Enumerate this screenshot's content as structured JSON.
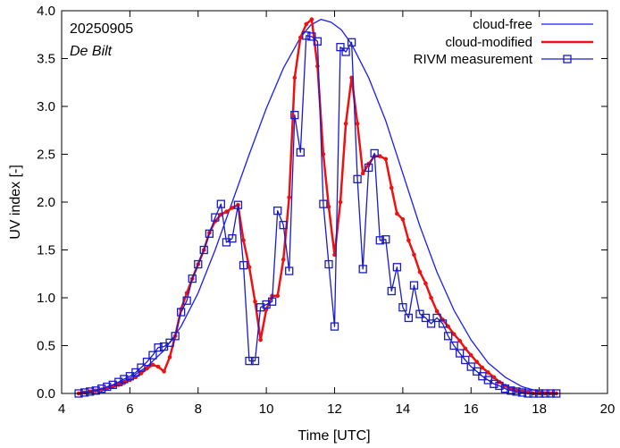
{
  "chart_data": {
    "type": "line",
    "xlabel": "Time  [UTC]",
    "ylabel": "UV index  [-]",
    "xlim": [
      4,
      20
    ],
    "ylim": [
      0,
      4
    ],
    "xticks": [
      4,
      6,
      8,
      10,
      12,
      14,
      16,
      18,
      20
    ],
    "yticks": [
      0.0,
      0.5,
      1.0,
      1.5,
      2.0,
      2.5,
      3.0,
      3.5,
      4.0
    ],
    "xtick_labels": [
      "4",
      "6",
      "8",
      "10",
      "12",
      "14",
      "16",
      "18",
      "20"
    ],
    "ytick_labels": [
      "0.0",
      "0.5",
      "1.0",
      "1.5",
      "2.0",
      "2.5",
      "3.0",
      "3.5",
      "4.0"
    ],
    "annotations": {
      "date": "20250905",
      "location": "De Bilt"
    },
    "legend": {
      "position": "top-right"
    },
    "colors": {
      "cloud_free": "#1a1aff",
      "cloud_modified": "#ee1111",
      "measurement": "#1a1acc"
    },
    "series": [
      {
        "name": "cloud-free",
        "style": "line",
        "x": [
          4.5,
          5.0,
          5.5,
          6.0,
          6.5,
          7.0,
          7.5,
          8.0,
          8.5,
          9.0,
          9.5,
          10.0,
          10.5,
          11.0,
          11.3,
          11.6,
          11.9,
          12.2,
          12.5,
          13.0,
          13.5,
          14.0,
          14.5,
          15.0,
          15.5,
          16.0,
          16.5,
          17.0,
          17.5,
          18.0,
          18.5
        ],
        "values": [
          0.01,
          0.03,
          0.08,
          0.16,
          0.28,
          0.45,
          0.7,
          1.05,
          1.5,
          2.0,
          2.5,
          2.98,
          3.4,
          3.72,
          3.85,
          3.91,
          3.88,
          3.8,
          3.65,
          3.3,
          2.85,
          2.3,
          1.75,
          1.27,
          0.87,
          0.56,
          0.32,
          0.17,
          0.07,
          0.02,
          0.005
        ]
      },
      {
        "name": "cloud-modified",
        "style": "line-dots",
        "x": [
          4.5,
          4.67,
          4.83,
          5.0,
          5.17,
          5.33,
          5.5,
          5.67,
          5.83,
          6.0,
          6.17,
          6.33,
          6.5,
          6.67,
          6.83,
          7.0,
          7.17,
          7.33,
          7.5,
          7.67,
          7.83,
          8.0,
          8.17,
          8.33,
          8.5,
          8.67,
          8.83,
          9.0,
          9.17,
          9.33,
          9.5,
          9.67,
          9.83,
          10.0,
          10.17,
          10.33,
          10.5,
          10.67,
          10.83,
          11.0,
          11.17,
          11.33,
          11.5,
          11.67,
          11.83,
          12.0,
          12.17,
          12.33,
          12.5,
          12.67,
          12.83,
          13.0,
          13.17,
          13.33,
          13.5,
          13.67,
          13.83,
          14.0,
          14.17,
          14.33,
          14.5,
          14.67,
          14.83,
          15.0,
          15.17,
          15.33,
          15.5,
          15.67,
          15.83,
          16.0,
          16.17,
          16.33,
          16.5,
          16.67,
          16.83,
          17.0,
          17.17,
          17.33,
          17.5,
          17.67,
          17.83,
          18.0,
          18.17,
          18.33,
          18.5
        ],
        "values": [
          0.0,
          0.01,
          0.02,
          0.03,
          0.04,
          0.05,
          0.07,
          0.09,
          0.11,
          0.14,
          0.17,
          0.21,
          0.26,
          0.3,
          0.28,
          0.23,
          0.38,
          0.6,
          0.88,
          1.05,
          1.2,
          1.35,
          1.5,
          1.68,
          1.8,
          1.87,
          1.9,
          1.94,
          1.97,
          1.6,
          1.32,
          0.96,
          0.56,
          0.88,
          1.02,
          1.02,
          1.4,
          2.05,
          3.3,
          3.72,
          3.86,
          3.91,
          3.42,
          2.5,
          1.95,
          1.45,
          2.0,
          2.82,
          3.3,
          2.82,
          2.3,
          2.4,
          2.48,
          2.48,
          2.45,
          2.15,
          1.88,
          1.82,
          1.6,
          1.45,
          1.27,
          1.15,
          1.0,
          0.86,
          0.77,
          0.7,
          0.62,
          0.55,
          0.47,
          0.4,
          0.33,
          0.27,
          0.22,
          0.17,
          0.12,
          0.08,
          0.05,
          0.03,
          0.02,
          0.01,
          0.0,
          0.0,
          0.0,
          0.0,
          0.0
        ]
      },
      {
        "name": "RIVM measurement",
        "style": "line-squares",
        "x": [
          4.5,
          4.67,
          4.83,
          5.0,
          5.17,
          5.33,
          5.5,
          5.67,
          5.83,
          6.0,
          6.17,
          6.33,
          6.5,
          6.67,
          6.83,
          7.0,
          7.17,
          7.33,
          7.5,
          7.67,
          7.83,
          8.0,
          8.17,
          8.33,
          8.5,
          8.67,
          8.83,
          9.0,
          9.17,
          9.33,
          9.5,
          9.67,
          9.83,
          10.0,
          10.17,
          10.33,
          10.5,
          10.67,
          10.83,
          11.0,
          11.17,
          11.33,
          11.5,
          11.67,
          11.83,
          12.0,
          12.17,
          12.33,
          12.5,
          12.67,
          12.83,
          13.0,
          13.17,
          13.33,
          13.5,
          13.67,
          13.83,
          14.0,
          14.17,
          14.33,
          14.5,
          14.67,
          14.83,
          15.0,
          15.17,
          15.33,
          15.5,
          15.67,
          15.83,
          16.0,
          16.17,
          16.33,
          16.5,
          16.67,
          16.83,
          17.0,
          17.17,
          17.33,
          17.5,
          17.67,
          17.83,
          18.0,
          18.17,
          18.33,
          18.5
        ],
        "values": [
          0.0,
          0.01,
          0.02,
          0.03,
          0.05,
          0.07,
          0.09,
          0.12,
          0.15,
          0.18,
          0.22,
          0.27,
          0.33,
          0.4,
          0.48,
          0.49,
          0.53,
          0.6,
          0.85,
          0.97,
          1.2,
          1.35,
          1.5,
          1.67,
          1.84,
          1.98,
          1.58,
          1.62,
          1.97,
          1.34,
          0.34,
          0.34,
          0.9,
          0.93,
          0.96,
          1.91,
          1.76,
          1.28,
          2.91,
          2.52,
          3.74,
          3.73,
          3.68,
          1.98,
          1.35,
          0.7,
          3.62,
          3.57,
          3.67,
          2.24,
          1.3,
          2.36,
          2.51,
          1.6,
          1.61,
          1.07,
          1.32,
          0.9,
          0.79,
          1.13,
          0.83,
          0.79,
          0.73,
          0.79,
          0.73,
          0.6,
          0.5,
          0.42,
          0.35,
          0.28,
          0.23,
          0.18,
          0.14,
          0.1,
          0.08,
          0.05,
          0.03,
          0.02,
          0.01,
          0.0,
          0.0,
          0.0,
          0.0,
          0.0,
          0.0
        ]
      }
    ]
  }
}
